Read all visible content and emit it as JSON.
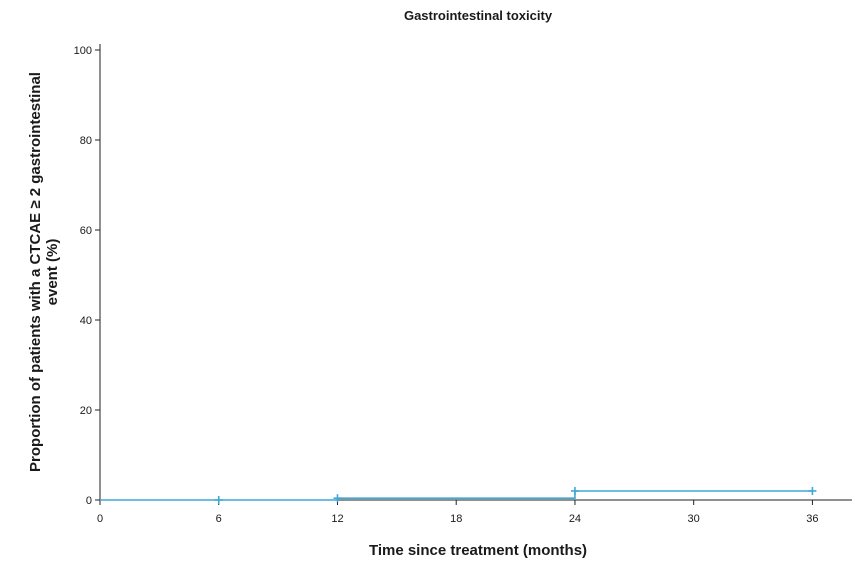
{
  "chart_data": {
    "type": "line",
    "title": "Gastrointestinal toxicity",
    "xlabel": "Time since treatment (months)",
    "ylabel_lines": [
      "Proportion of patients with a CTCAE ≥ 2 gastrointestinal",
      "event (%)"
    ],
    "xlim": [
      0,
      38
    ],
    "ylim": [
      0,
      100
    ],
    "xticks": [
      0,
      6,
      12,
      18,
      24,
      30,
      36
    ],
    "yticks": [
      0,
      20,
      40,
      60,
      80,
      100
    ],
    "grid": false,
    "legend": "none",
    "series": [
      {
        "color": "#3fa9d6",
        "step": true,
        "x": [
          0,
          12,
          24,
          36
        ],
        "y": [
          0,
          0.4,
          2,
          2
        ],
        "censored": [
          {
            "x": 6,
            "y": 0
          },
          {
            "x": 12,
            "y": 0.4
          },
          {
            "x": 24,
            "y": 2
          },
          {
            "x": 36,
            "y": 2
          }
        ]
      }
    ]
  }
}
